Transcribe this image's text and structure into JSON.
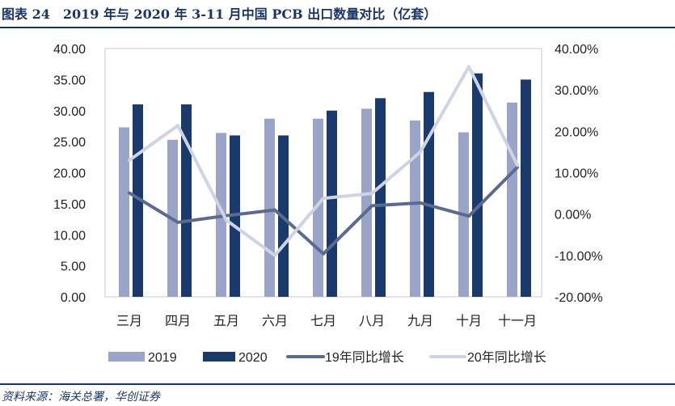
{
  "figure_title": "图表 24　2019 年与 2020 年 3-11 月中国 PCB 出口数量对比（亿套）",
  "source": "资料来源：海关总署，华创证券",
  "colors": {
    "bar2019": "#9aa4c8",
    "bar2020": "#1a3a6b",
    "line19": "#5a6b8f",
    "line20": "#cfd4e4",
    "rule": "#1a3565"
  },
  "chart_data": {
    "type": "bar",
    "categories": [
      "三月",
      "四月",
      "五月",
      "六月",
      "七月",
      "八月",
      "九月",
      "十月",
      "十一月"
    ],
    "series": [
      {
        "name": "2019",
        "type": "bar",
        "axis": "left",
        "values": [
          27.3,
          25.3,
          26.4,
          28.7,
          28.7,
          30.3,
          28.4,
          26.5,
          31.3
        ]
      },
      {
        "name": "2020",
        "type": "bar",
        "axis": "left",
        "values": [
          31.0,
          31.0,
          26.0,
          26.0,
          30.0,
          32.0,
          33.0,
          36.0,
          35.0
        ]
      },
      {
        "name": "19年同比增长",
        "type": "line",
        "axis": "right",
        "values": [
          5.1,
          -2.0,
          -0.4,
          1.0,
          -9.6,
          2.0,
          2.7,
          -0.5,
          11.3
        ]
      },
      {
        "name": "20年同比增长",
        "type": "line",
        "axis": "right",
        "values": [
          13.0,
          21.4,
          -1.5,
          -10.0,
          3.8,
          5.0,
          15.0,
          35.6,
          11.8
        ]
      }
    ],
    "y_left": {
      "ylim": [
        0,
        40
      ],
      "ticks": [
        "0.00",
        "5.00",
        "10.00",
        "15.00",
        "20.00",
        "25.00",
        "30.00",
        "35.00",
        "40.00"
      ]
    },
    "y_right": {
      "ylim": [
        -20,
        40
      ],
      "ticks": [
        "-20.00%",
        "-10.00%",
        "0.00%",
        "10.00%",
        "20.00%",
        "30.00%",
        "40.00%"
      ]
    },
    "grid": false,
    "legend": {
      "placement": "bottom",
      "entries": [
        "2019",
        "2020",
        "19年同比增长",
        "20年同比增长"
      ]
    }
  }
}
